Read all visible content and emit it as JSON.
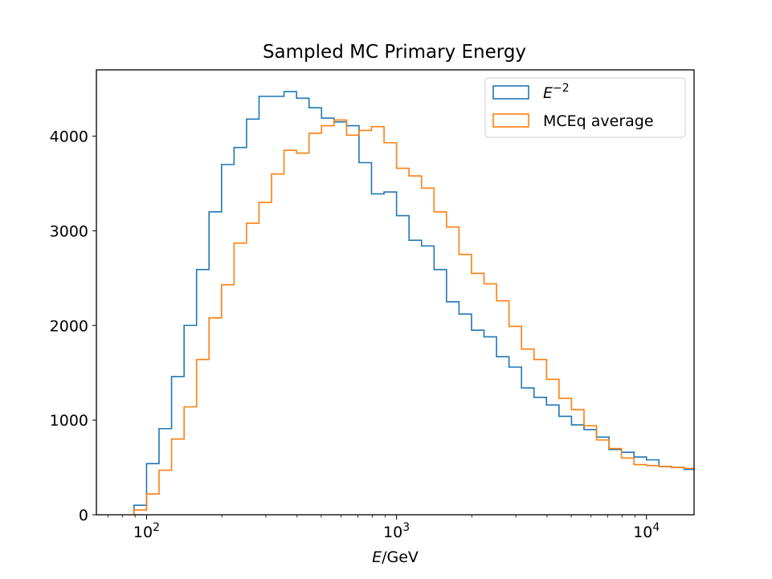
{
  "chart_data": {
    "type": "histogram",
    "title": "Sampled MC Primary Energy",
    "xlabel_symbol": "E",
    "xlabel_unit": "/GeV",
    "xscale": "log",
    "xlim": [
      63,
      15500
    ],
    "ylim": [
      0,
      4700
    ],
    "grid": false,
    "legend_position": "top-right",
    "y_ticks": [
      0,
      1000,
      2000,
      3000,
      4000
    ],
    "y_tick_labels": [
      "0",
      "1000",
      "2000",
      "3000",
      "4000"
    ],
    "x_ticks": [
      100,
      1000,
      10000
    ],
    "x_tick_labels": [
      {
        "base": "10",
        "exp": "2"
      },
      {
        "base": "10",
        "exp": "3"
      },
      {
        "base": "10",
        "exp": "4"
      }
    ],
    "bin_edges": [
      89.1,
      100,
      112.2,
      125.9,
      141.3,
      158.5,
      177.8,
      199.5,
      223.9,
      251.2,
      281.8,
      316.2,
      354.8,
      398.1,
      446.7,
      501.2,
      562.3,
      631,
      707.9,
      794.3,
      891.3,
      1000,
      1122,
      1259,
      1413,
      1585,
      1778,
      1995,
      2239,
      2512,
      2818,
      3162,
      3548,
      3981,
      4467,
      5012,
      5623,
      6310,
      7079,
      7943,
      8913,
      10000,
      11220,
      12590,
      14130,
      15850
    ],
    "series": [
      {
        "name_base": "E",
        "name_sup": "−2",
        "color": "#1f77b4",
        "values": [
          100,
          540,
          910,
          1460,
          2000,
          2590,
          3200,
          3700,
          3880,
          4180,
          4420,
          4420,
          4470,
          4400,
          4300,
          4190,
          4150,
          4110,
          3720,
          3390,
          3410,
          3160,
          2900,
          2840,
          2590,
          2250,
          2120,
          1950,
          1880,
          1670,
          1560,
          1340,
          1240,
          1160,
          1040,
          950,
          900,
          820,
          690,
          660,
          610,
          580,
          510,
          500,
          480
        ]
      },
      {
        "name": "MCEq average",
        "color": "#ff7f0e",
        "values": [
          50,
          220,
          470,
          800,
          1140,
          1640,
          2080,
          2430,
          2870,
          3080,
          3300,
          3600,
          3850,
          3820,
          4030,
          4110,
          4170,
          4010,
          4060,
          4100,
          3930,
          3660,
          3580,
          3450,
          3200,
          3040,
          2750,
          2550,
          2440,
          2260,
          1990,
          1750,
          1640,
          1430,
          1230,
          1110,
          940,
          790,
          700,
          600,
          530,
          520,
          510,
          500,
          490
        ]
      }
    ]
  }
}
